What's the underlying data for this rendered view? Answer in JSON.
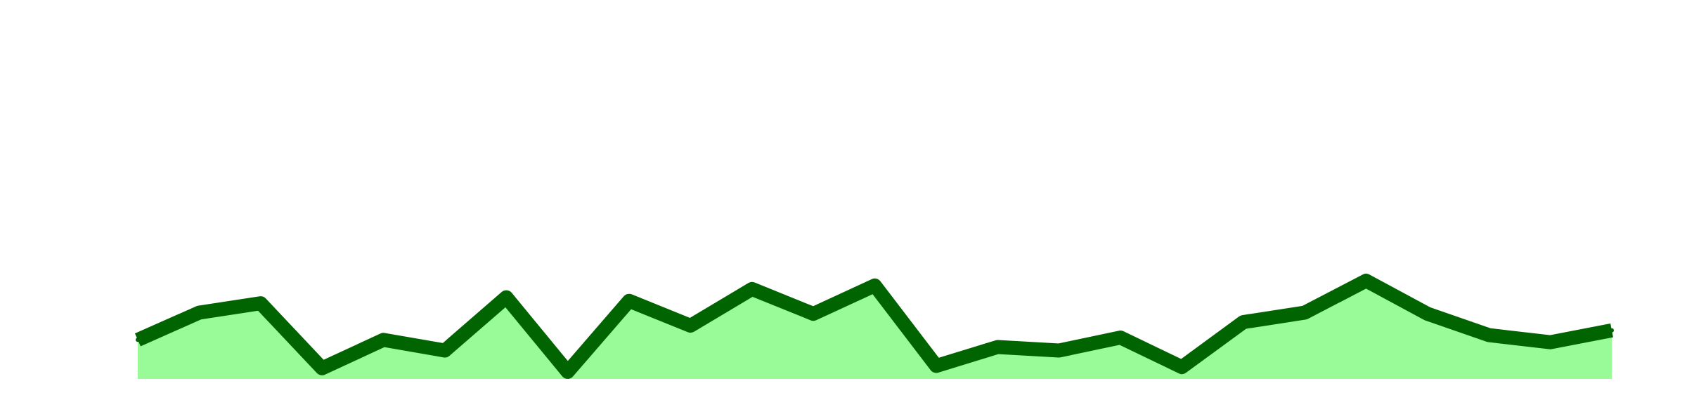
{
  "chart_data": {
    "type": "area",
    "title": "",
    "xlabel": "",
    "ylabel": "",
    "x": [
      1,
      2,
      3,
      4,
      5,
      6,
      7,
      8,
      9,
      10,
      11,
      12,
      13,
      14,
      15,
      16,
      17,
      18,
      19,
      20,
      21,
      22,
      23,
      24,
      25
    ],
    "series": [
      {
        "values": [
          3.3,
          5.6,
          6.4,
          0.9,
          3.3,
          2.4,
          6.9,
          0.6,
          6.6,
          4.5,
          7.6,
          5.5,
          7.9,
          1.1,
          2.7,
          2.4,
          3.5,
          1.0,
          4.8,
          5.6,
          8.3,
          5.5,
          3.7,
          3.1,
          4.1
        ],
        "line_color": "#006400",
        "fill_color": "#98fb98"
      }
    ],
    "ylim": [
      0,
      30
    ],
    "grid": false,
    "legend": "none"
  }
}
